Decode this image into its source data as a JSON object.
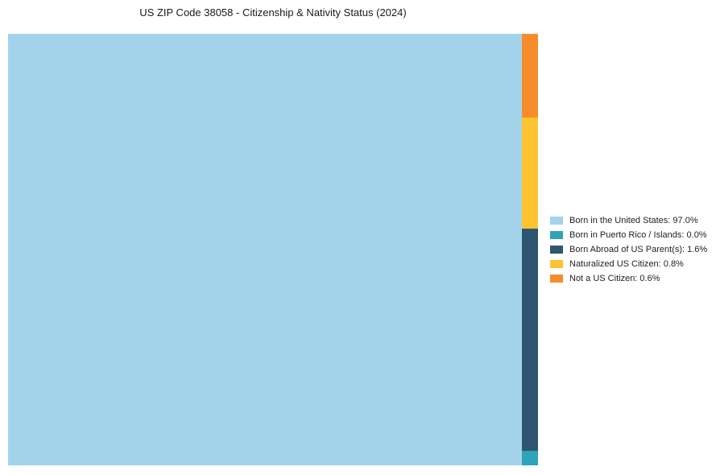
{
  "title": "US ZIP Code 38058 - Citizenship & Nativity Status (2024)",
  "chart_data": {
    "type": "pie",
    "variant": "treemap",
    "title": "US ZIP Code 38058 - Citizenship & Nativity Status (2024)",
    "legend_position": "right-center",
    "grid": false,
    "items": [
      {
        "label": "Born in the United States",
        "value": 97.0,
        "display": "Born in the United States: 97.0%",
        "color": "#A3D3EB"
      },
      {
        "label": "Born in Puerto Rico / Islands",
        "value": 0.0,
        "display": "Born in Puerto Rico / Islands: 0.0%",
        "color": "#2FA3B8"
      },
      {
        "label": "Born Abroad of US Parent(s)",
        "value": 1.6,
        "display": "Born Abroad of US Parent(s): 1.6%",
        "color": "#2E5670"
      },
      {
        "label": "Naturalized US Citizen",
        "value": 0.8,
        "display": "Naturalized US Citizen: 0.8%",
        "color": "#FDC330"
      },
      {
        "label": "Not a US Citizen",
        "value": 0.6,
        "display": "Not a US Citizen: 0.6%",
        "color": "#F68C2C"
      }
    ]
  }
}
